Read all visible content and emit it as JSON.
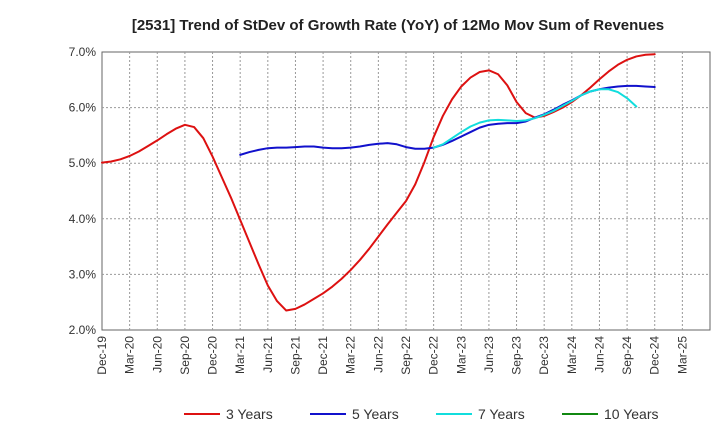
{
  "chart_data": {
    "type": "line",
    "title": "[2531]  Trend of StDev of Growth Rate (YoY) of 12Mo Mov Sum of Revenues",
    "xlabel": "",
    "ylabel": "",
    "ylim": [
      2.0,
      7.0
    ],
    "yticks": [
      "2.0%",
      "3.0%",
      "4.0%",
      "5.0%",
      "6.0%",
      "7.0%"
    ],
    "ytick_values": [
      2.0,
      3.0,
      4.0,
      5.0,
      6.0,
      7.0
    ],
    "xlim": [
      0,
      66
    ],
    "xtick_labels": [
      "Dec-19",
      "Mar-20",
      "Jun-20",
      "Sep-20",
      "Dec-20",
      "Mar-21",
      "Jun-21",
      "Sep-21",
      "Dec-21",
      "Mar-22",
      "Jun-22",
      "Sep-22",
      "Dec-22",
      "Mar-23",
      "Jun-23",
      "Sep-23",
      "Dec-23",
      "Mar-24",
      "Jun-24",
      "Sep-24",
      "Dec-24",
      "Mar-25"
    ],
    "xtick_positions": [
      0,
      3,
      6,
      9,
      12,
      15,
      18,
      21,
      24,
      27,
      30,
      33,
      36,
      39,
      42,
      45,
      48,
      51,
      54,
      57,
      60,
      63
    ],
    "grid": true,
    "legend_position": "bottom",
    "series": [
      {
        "name": "3 Years",
        "color": "#dd1111",
        "points": [
          [
            0,
            5.01
          ],
          [
            1,
            5.03
          ],
          [
            2,
            5.07
          ],
          [
            3,
            5.13
          ],
          [
            4,
            5.21
          ],
          [
            5,
            5.31
          ],
          [
            6,
            5.41
          ],
          [
            7,
            5.52
          ],
          [
            8,
            5.62
          ],
          [
            9,
            5.69
          ],
          [
            10,
            5.65
          ],
          [
            11,
            5.45
          ],
          [
            12,
            5.12
          ],
          [
            13,
            4.75
          ],
          [
            14,
            4.38
          ],
          [
            15,
            3.98
          ],
          [
            16,
            3.58
          ],
          [
            17,
            3.18
          ],
          [
            18,
            2.8
          ],
          [
            19,
            2.52
          ],
          [
            20,
            2.35
          ],
          [
            21,
            2.38
          ],
          [
            22,
            2.46
          ],
          [
            23,
            2.56
          ],
          [
            24,
            2.66
          ],
          [
            25,
            2.78
          ],
          [
            26,
            2.92
          ],
          [
            27,
            3.08
          ],
          [
            28,
            3.26
          ],
          [
            29,
            3.46
          ],
          [
            30,
            3.68
          ],
          [
            31,
            3.9
          ],
          [
            32,
            4.11
          ],
          [
            33,
            4.32
          ],
          [
            34,
            4.62
          ],
          [
            35,
            5.02
          ],
          [
            36,
            5.47
          ],
          [
            37,
            5.85
          ],
          [
            38,
            6.15
          ],
          [
            39,
            6.38
          ],
          [
            40,
            6.54
          ],
          [
            41,
            6.64
          ],
          [
            42,
            6.67
          ],
          [
            43,
            6.6
          ],
          [
            44,
            6.4
          ],
          [
            45,
            6.1
          ],
          [
            46,
            5.9
          ],
          [
            47,
            5.82
          ],
          [
            48,
            5.85
          ],
          [
            49,
            5.92
          ],
          [
            50,
            6.0
          ],
          [
            51,
            6.1
          ],
          [
            52,
            6.22
          ],
          [
            53,
            6.36
          ],
          [
            54,
            6.51
          ],
          [
            55,
            6.65
          ],
          [
            56,
            6.77
          ],
          [
            57,
            6.86
          ],
          [
            58,
            6.92
          ],
          [
            59,
            6.95
          ],
          [
            60,
            6.96
          ]
        ]
      },
      {
        "name": "5 Years",
        "color": "#1111cc",
        "points": [
          [
            15,
            5.15
          ],
          [
            16,
            5.2
          ],
          [
            17,
            5.24
          ],
          [
            18,
            5.27
          ],
          [
            19,
            5.28
          ],
          [
            20,
            5.28
          ],
          [
            21,
            5.29
          ],
          [
            22,
            5.3
          ],
          [
            23,
            5.3
          ],
          [
            24,
            5.28
          ],
          [
            25,
            5.27
          ],
          [
            26,
            5.27
          ],
          [
            27,
            5.28
          ],
          [
            28,
            5.3
          ],
          [
            29,
            5.33
          ],
          [
            30,
            5.35
          ],
          [
            31,
            5.36
          ],
          [
            32,
            5.34
          ],
          [
            33,
            5.29
          ],
          [
            34,
            5.26
          ],
          [
            35,
            5.26
          ],
          [
            36,
            5.28
          ],
          [
            37,
            5.33
          ],
          [
            38,
            5.4
          ],
          [
            39,
            5.48
          ],
          [
            40,
            5.56
          ],
          [
            41,
            5.64
          ],
          [
            42,
            5.69
          ],
          [
            43,
            5.71
          ],
          [
            44,
            5.72
          ],
          [
            45,
            5.72
          ],
          [
            46,
            5.75
          ],
          [
            47,
            5.82
          ],
          [
            48,
            5.88
          ],
          [
            49,
            5.96
          ],
          [
            50,
            6.05
          ],
          [
            51,
            6.13
          ],
          [
            52,
            6.22
          ],
          [
            53,
            6.29
          ],
          [
            54,
            6.33
          ],
          [
            55,
            6.36
          ],
          [
            56,
            6.38
          ],
          [
            57,
            6.39
          ],
          [
            58,
            6.39
          ],
          [
            59,
            6.38
          ],
          [
            60,
            6.37
          ]
        ]
      },
      {
        "name": "7 Years",
        "color": "#11dddd",
        "points": [
          [
            36,
            5.28
          ],
          [
            37,
            5.34
          ],
          [
            38,
            5.45
          ],
          [
            39,
            5.56
          ],
          [
            40,
            5.66
          ],
          [
            41,
            5.73
          ],
          [
            42,
            5.77
          ],
          [
            43,
            5.78
          ],
          [
            44,
            5.77
          ],
          [
            45,
            5.76
          ],
          [
            46,
            5.77
          ],
          [
            47,
            5.81
          ],
          [
            48,
            5.87
          ],
          [
            49,
            5.94
          ],
          [
            50,
            6.03
          ],
          [
            51,
            6.12
          ],
          [
            52,
            6.22
          ],
          [
            53,
            6.29
          ],
          [
            54,
            6.33
          ],
          [
            55,
            6.33
          ],
          [
            56,
            6.28
          ],
          [
            57,
            6.17
          ],
          [
            58,
            6.02
          ]
        ]
      },
      {
        "name": "10 Years",
        "color": "#118811",
        "points": []
      }
    ]
  }
}
